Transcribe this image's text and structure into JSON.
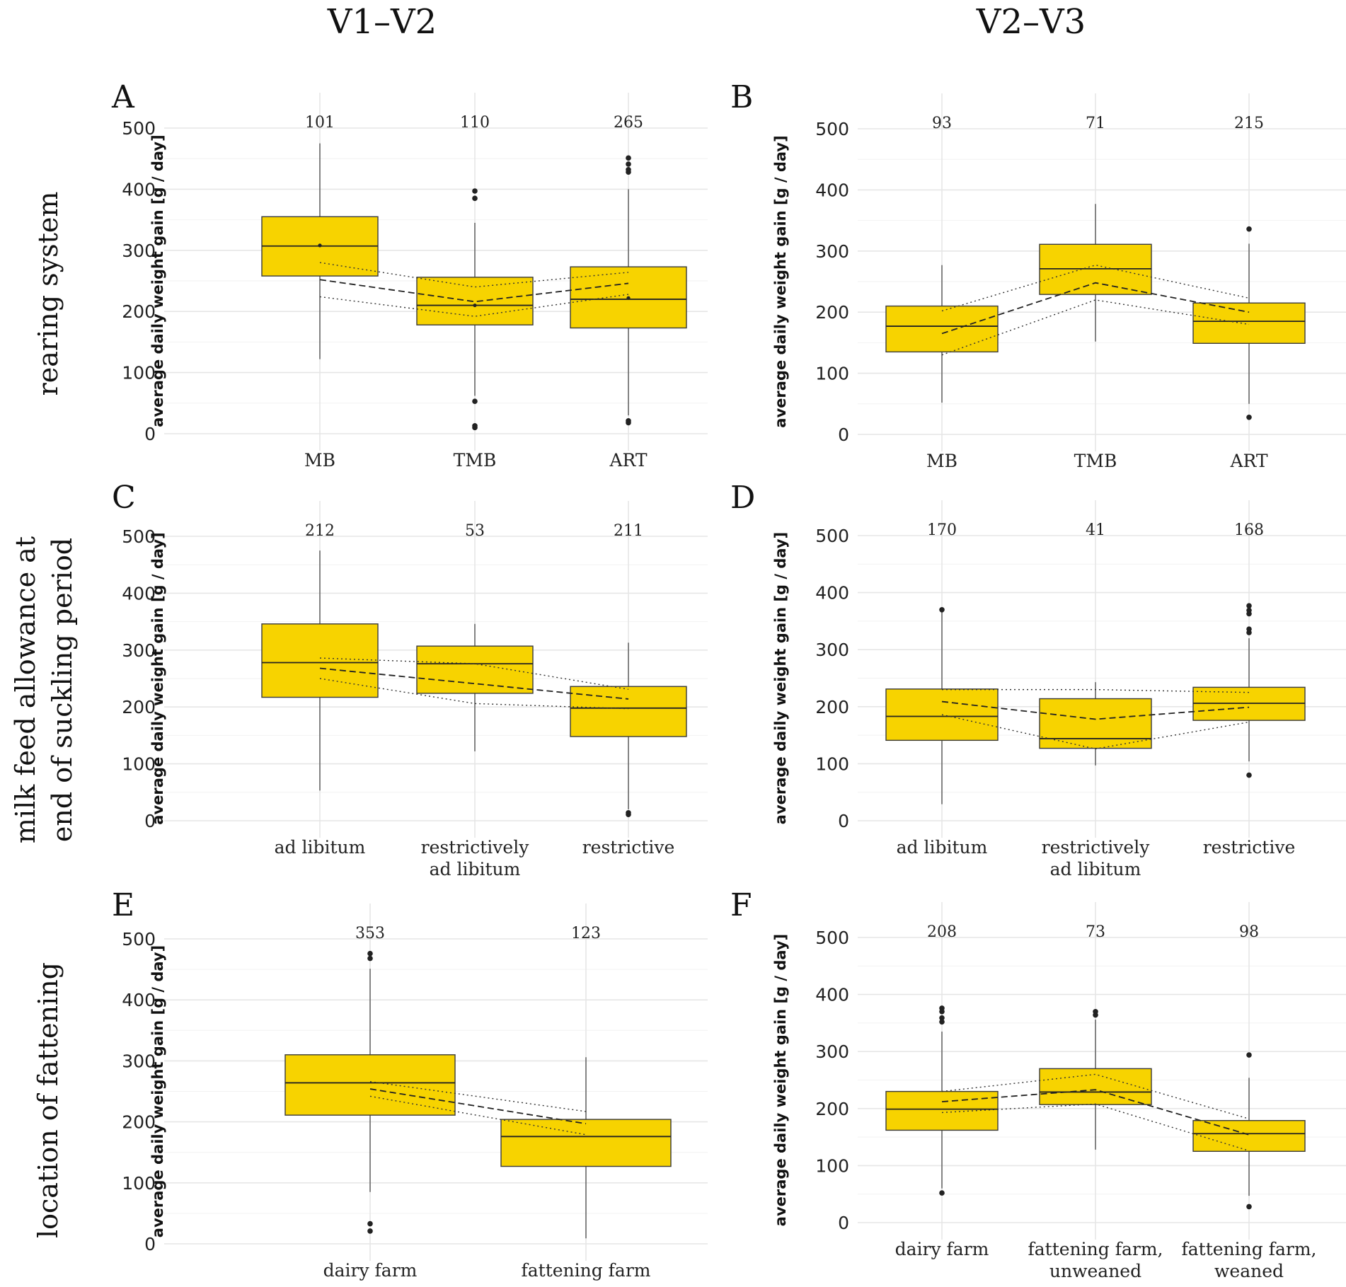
{
  "column_titles": [
    "V1–V2",
    "V2–V3"
  ],
  "row_titles": {
    "row1": [
      "rearing system"
    ],
    "row2": [
      "milk feed allowance at",
      "end of suckling period"
    ],
    "row3": [
      "location of fattening"
    ]
  },
  "colors": {
    "box_fill": "#f7d300",
    "box_stroke": "#3a3a3a",
    "grid": "#e6e6e6"
  },
  "chart_data": [
    {
      "panel": "A",
      "type": "box",
      "ylabel": "average daily weight gain [g / day]",
      "ylim": [
        0,
        500
      ],
      "yticks": [
        0,
        100,
        200,
        300,
        400,
        500
      ],
      "categories": [
        [
          "MB"
        ],
        [
          "TMB"
        ],
        [
          "ART"
        ]
      ],
      "counts": [
        "101",
        "110",
        "265"
      ],
      "boxes": [
        {
          "q1": 258,
          "median": 307,
          "q3": 355,
          "whisker_low": 122,
          "whisker_high": 475,
          "outliers": []
        },
        {
          "q1": 178,
          "median": 210,
          "q3": 256,
          "whisker_low": 62,
          "whisker_high": 345,
          "outliers": [
            385,
            397,
            53,
            13,
            10
          ]
        },
        {
          "q1": 173,
          "median": 220,
          "q3": 273,
          "whisker_low": 30,
          "whisker_high": 400,
          "outliers": [
            428,
            432,
            441,
            451,
            21,
            18
          ]
        }
      ],
      "mean_points": [
        308,
        210,
        222
      ],
      "trend": {
        "mean": [
          252,
          216,
          246
        ],
        "upper": [
          280,
          240,
          264
        ],
        "lower": [
          224,
          192,
          228
        ]
      }
    },
    {
      "panel": "B",
      "type": "box",
      "ylabel": "average daily weight gain [g / day]",
      "ylim": [
        0,
        500
      ],
      "yticks": [
        0,
        100,
        200,
        300,
        400,
        500
      ],
      "categories": [
        [
          "MB"
        ],
        [
          "TMB"
        ],
        [
          "ART"
        ]
      ],
      "counts": [
        "93",
        "71",
        "215"
      ],
      "boxes": [
        {
          "q1": 135,
          "median": 177,
          "q3": 210,
          "whisker_low": 52,
          "whisker_high": 277,
          "outliers": []
        },
        {
          "q1": 229,
          "median": 271,
          "q3": 311,
          "whisker_low": 152,
          "whisker_high": 377,
          "outliers": []
        },
        {
          "q1": 149,
          "median": 185,
          "q3": 215,
          "whisker_low": 50,
          "whisker_high": 312,
          "outliers": [
            336,
            28
          ]
        }
      ],
      "mean_points": [],
      "trend": {
        "mean": [
          165,
          248,
          200
        ],
        "upper": [
          202,
          277,
          223
        ],
        "lower": [
          130,
          220,
          180
        ]
      }
    },
    {
      "panel": "C",
      "type": "box",
      "ylabel": "average daily weight gain [g / day]",
      "ylim": [
        0,
        500
      ],
      "yticks": [
        0,
        100,
        200,
        300,
        400,
        500
      ],
      "categories": [
        [
          "ad libitum"
        ],
        [
          "restrictively",
          "ad libitum"
        ],
        [
          "restrictive"
        ]
      ],
      "counts": [
        "212",
        "53",
        "211"
      ],
      "boxes": [
        {
          "q1": 217,
          "median": 278,
          "q3": 346,
          "whisker_low": 53,
          "whisker_high": 475,
          "outliers": []
        },
        {
          "q1": 224,
          "median": 276,
          "q3": 307,
          "whisker_low": 122,
          "whisker_high": 346,
          "outliers": []
        },
        {
          "q1": 148,
          "median": 198,
          "q3": 236,
          "whisker_low": 20,
          "whisker_high": 313,
          "outliers": [
            14,
            11
          ]
        }
      ],
      "mean_points": [],
      "trend": {
        "mean": [
          268,
          241,
          214
        ],
        "upper": [
          286,
          276,
          231
        ],
        "lower": [
          250,
          206,
          197
        ]
      }
    },
    {
      "panel": "D",
      "type": "box",
      "ylabel": "average daily weight gain [g / day]",
      "ylim": [
        0,
        500
      ],
      "yticks": [
        0,
        100,
        200,
        300,
        400,
        500
      ],
      "categories": [
        [
          "ad libitum"
        ],
        [
          "restrictively",
          "ad libitum"
        ],
        [
          "restrictive"
        ]
      ],
      "counts": [
        "170",
        "41",
        "168"
      ],
      "boxes": [
        {
          "q1": 141,
          "median": 183,
          "q3": 231,
          "whisker_low": 29,
          "whisker_high": 370,
          "outliers": [
            370
          ]
        },
        {
          "q1": 127,
          "median": 144,
          "q3": 214,
          "whisker_low": 97,
          "whisker_high": 243,
          "outliers": []
        },
        {
          "q1": 176,
          "median": 206,
          "q3": 234,
          "whisker_low": 104,
          "whisker_high": 320,
          "outliers": [
            330,
            336,
            363,
            369,
            377,
            80
          ]
        }
      ],
      "mean_points": [],
      "trend": {
        "mean": [
          209,
          178,
          199
        ],
        "upper": [
          230,
          230,
          225
        ],
        "lower": [
          186,
          126,
          173
        ]
      }
    },
    {
      "panel": "E",
      "type": "box",
      "ylabel": "average daily weight gain [g / day]",
      "ylim": [
        0,
        500
      ],
      "yticks": [
        0,
        100,
        200,
        300,
        400,
        500
      ],
      "categories": [
        [
          "dairy farm"
        ],
        [
          "fattening farm"
        ]
      ],
      "counts": [
        "353",
        "123"
      ],
      "boxes": [
        {
          "q1": 211,
          "median": 264,
          "q3": 310,
          "whisker_low": 85,
          "whisker_high": 451,
          "outliers": [
            468,
            476,
            33,
            21
          ]
        },
        {
          "q1": 127,
          "median": 176,
          "q3": 204,
          "whisker_low": 9,
          "whisker_high": 306,
          "outliers": []
        }
      ],
      "mean_points": [],
      "trend": {
        "mean": [
          254,
          197
        ],
        "upper": [
          266,
          217
        ],
        "lower": [
          242,
          179
        ]
      }
    },
    {
      "panel": "F",
      "type": "box",
      "ylabel": "average daily weight gain [g / day]",
      "ylim": [
        0,
        500
      ],
      "yticks": [
        0,
        100,
        200,
        300,
        400,
        500
      ],
      "categories": [
        [
          "dairy farm"
        ],
        [
          "fattening farm,",
          "unweaned"
        ],
        [
          "fattening farm,",
          "weaned"
        ]
      ],
      "counts": [
        "208",
        "73",
        "98"
      ],
      "boxes": [
        {
          "q1": 162,
          "median": 199,
          "q3": 230,
          "whisker_low": 60,
          "whisker_high": 335,
          "outliers": [
            352,
            359,
            370,
            376,
            52
          ]
        },
        {
          "q1": 207,
          "median": 229,
          "q3": 270,
          "whisker_low": 128,
          "whisker_high": 356,
          "outliers": [
            364,
            370
          ]
        },
        {
          "q1": 125,
          "median": 156,
          "q3": 179,
          "whisker_low": 47,
          "whisker_high": 254,
          "outliers": [
            294,
            28
          ]
        }
      ],
      "mean_points": [],
      "trend": {
        "mean": [
          212,
          233,
          154
        ],
        "upper": [
          230,
          260,
          182
        ],
        "lower": [
          193,
          208,
          126
        ]
      }
    }
  ]
}
